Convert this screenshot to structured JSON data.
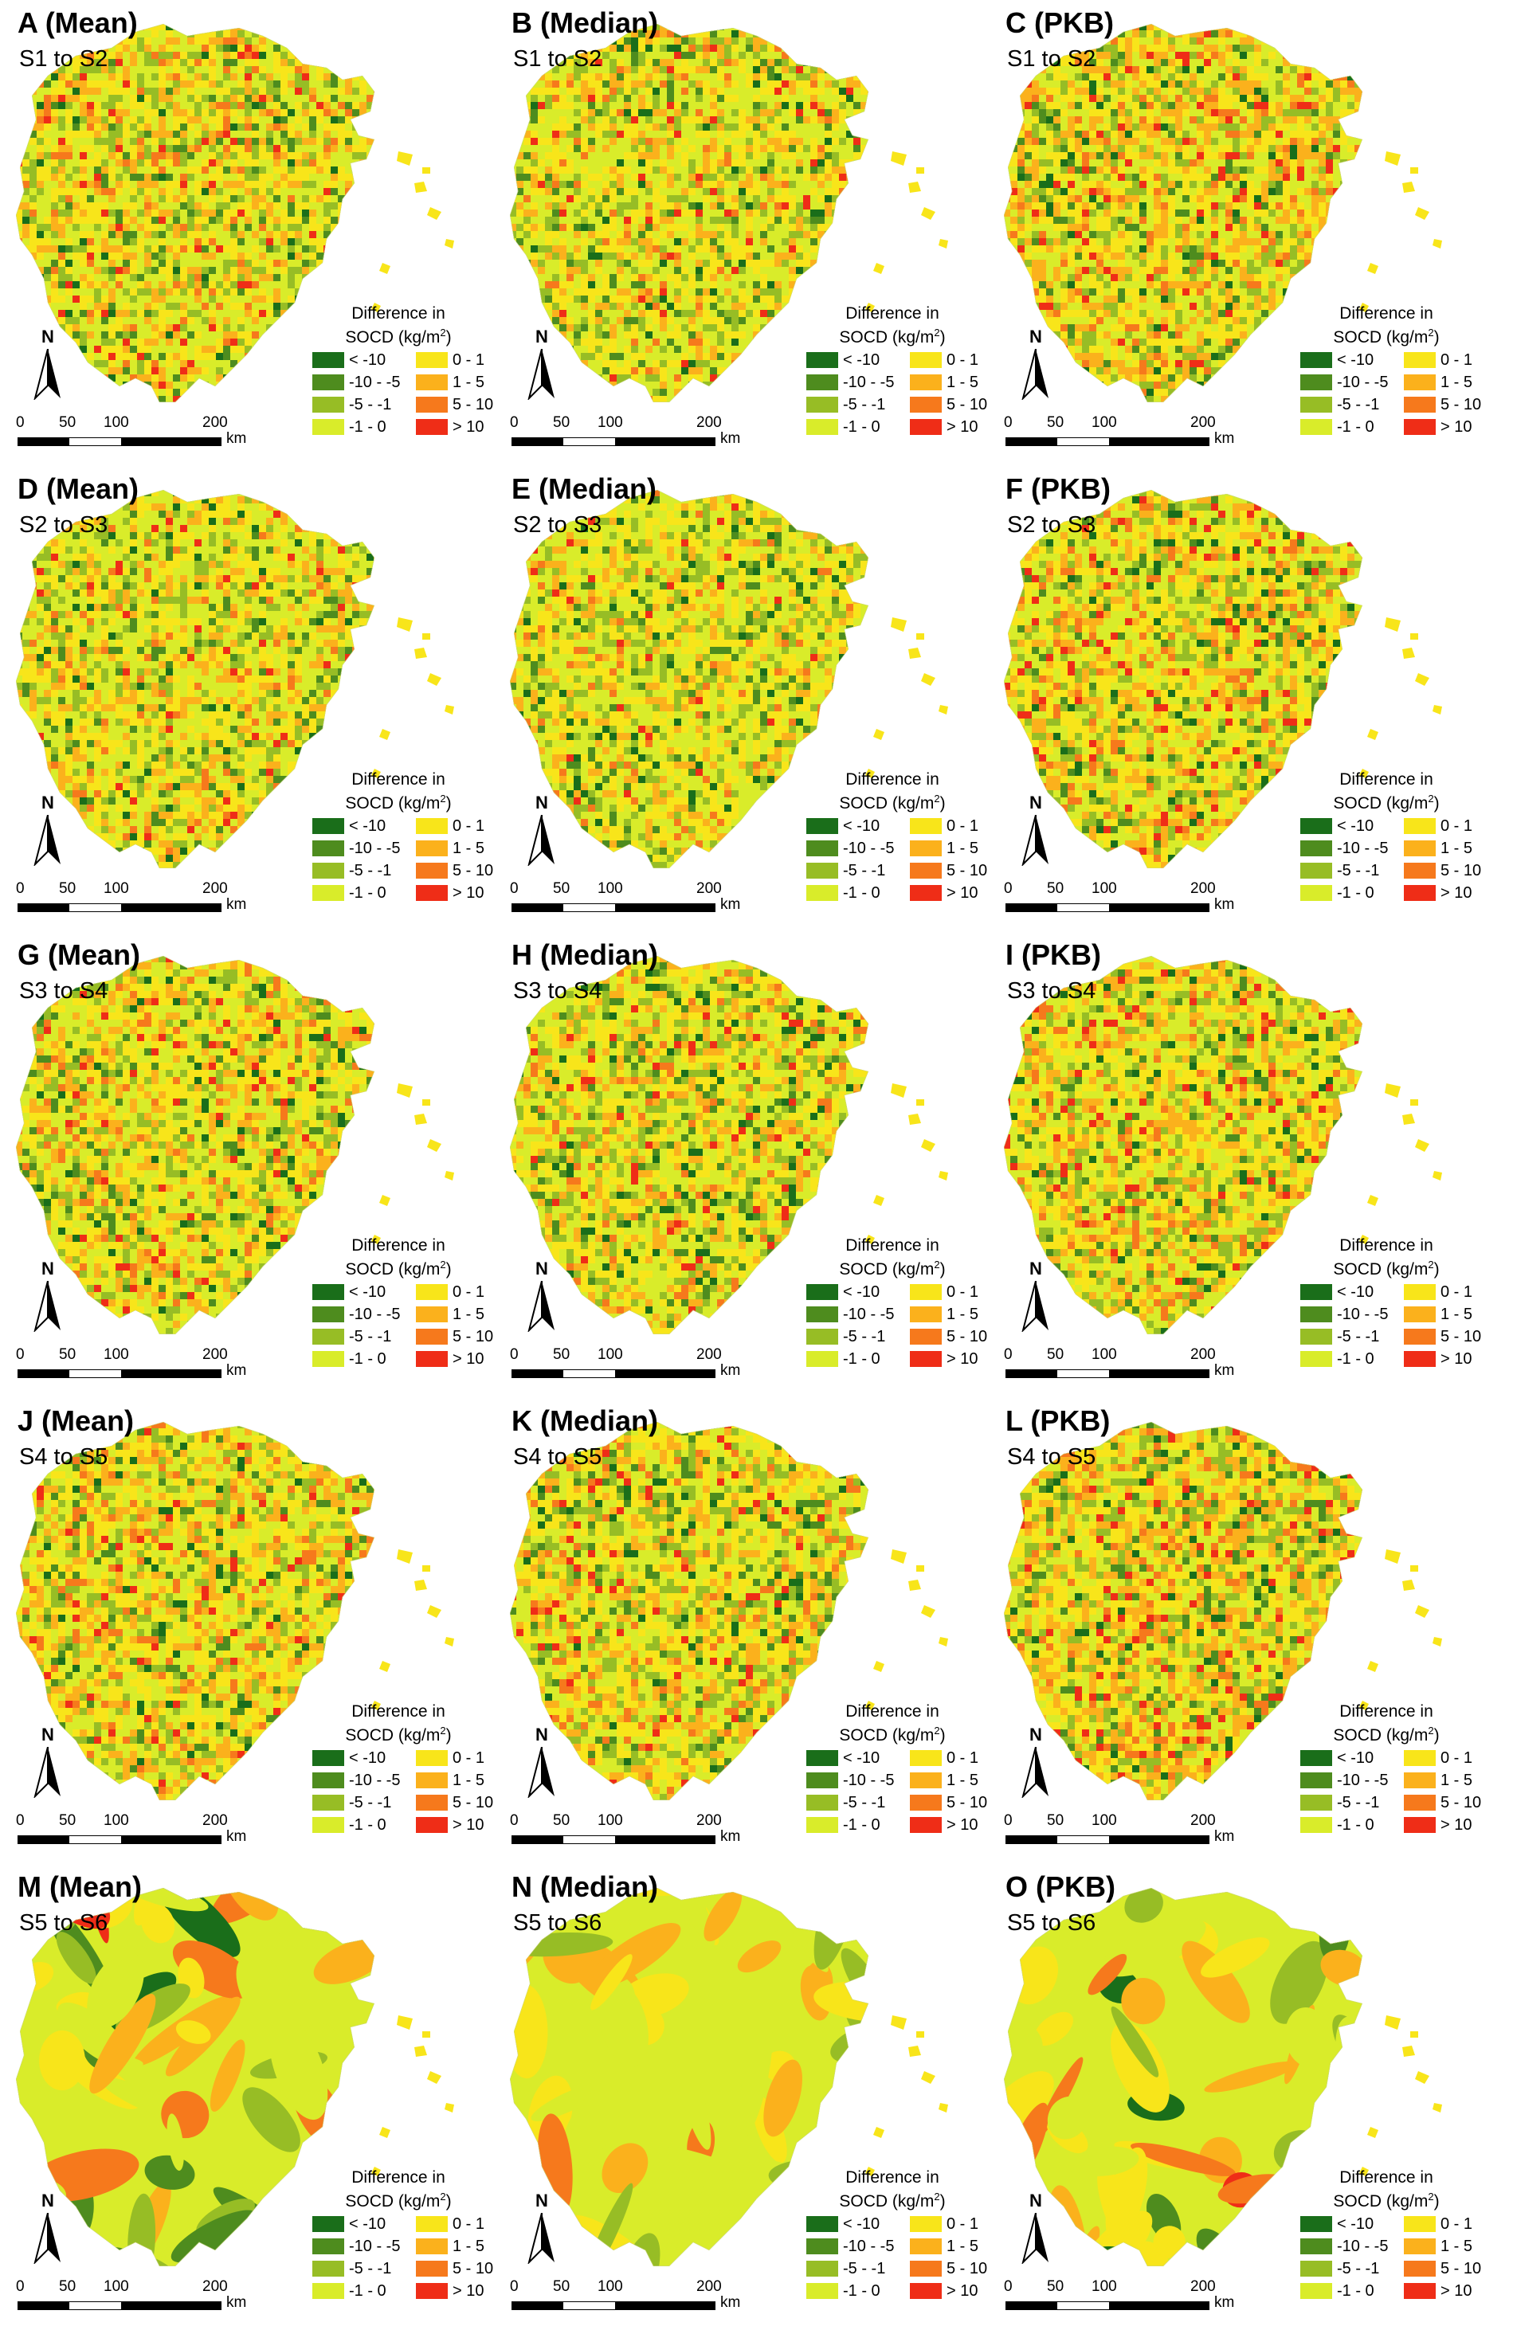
{
  "panels": [
    {
      "letter": "A",
      "method": "(Mean)",
      "transition": "S1 to S2",
      "smooth": false,
      "shift": 0.0
    },
    {
      "letter": "B",
      "method": "(Median)",
      "transition": "S1 to S2",
      "smooth": false,
      "shift": -0.05
    },
    {
      "letter": "C",
      "method": "(PKB)",
      "transition": "S1 to S2",
      "smooth": false,
      "shift": 0.1
    },
    {
      "letter": "D",
      "method": "(Mean)",
      "transition": "S2 to S3",
      "smooth": false,
      "shift": -0.05
    },
    {
      "letter": "E",
      "method": "(Median)",
      "transition": "S2 to S3",
      "smooth": false,
      "shift": -0.08
    },
    {
      "letter": "F",
      "method": "(PKB)",
      "transition": "S2 to S3",
      "smooth": false,
      "shift": 0.05
    },
    {
      "letter": "G",
      "method": "(Mean)",
      "transition": "S3 to S4",
      "smooth": false,
      "shift": 0.02
    },
    {
      "letter": "H",
      "method": "(Median)",
      "transition": "S3 to S4",
      "smooth": false,
      "shift": -0.02
    },
    {
      "letter": "I",
      "method": "(PKB)",
      "transition": "S3 to S4",
      "smooth": false,
      "shift": 0.03
    },
    {
      "letter": "J",
      "method": "(Mean)",
      "transition": "S4 to S5",
      "smooth": false,
      "shift": 0.08
    },
    {
      "letter": "K",
      "method": "(Median)",
      "transition": "S4 to S5",
      "smooth": false,
      "shift": 0.06
    },
    {
      "letter": "L",
      "method": "(PKB)",
      "transition": "S4 to S5",
      "smooth": false,
      "shift": 0.12
    },
    {
      "letter": "M",
      "method": "(Mean)",
      "transition": "S5 to S6",
      "smooth": true,
      "shift": 0.0
    },
    {
      "letter": "N",
      "method": "(Median)",
      "transition": "S5 to S6",
      "smooth": true,
      "shift": 0.02
    },
    {
      "letter": "O",
      "method": "(PKB)",
      "transition": "S5 to S6",
      "smooth": true,
      "shift": 0.08
    }
  ],
  "legend": {
    "title_line1": "Difference in",
    "title_line2_prefix": "SOCD (kg/m",
    "title_line2_sup": "2",
    "title_line2_suffix": ")",
    "classes": [
      {
        "label": "< -10",
        "color": "#1a6e1a"
      },
      {
        "label": "-10 - -5",
        "color": "#4e8c1e"
      },
      {
        "label": "-5 - -1",
        "color": "#97bd25"
      },
      {
        "label": "-1 - 0",
        "color": "#d9ec2a"
      },
      {
        "label": "0 - 1",
        "color": "#f8e51a"
      },
      {
        "label": "1 - 5",
        "color": "#fbb11c"
      },
      {
        "label": "5 - 10",
        "color": "#f6791c"
      },
      {
        "label": "> 10",
        "color": "#ef2d17"
      }
    ]
  },
  "north_arrow": {
    "letter": "N"
  },
  "scalebar": {
    "ticks": [
      "0",
      "50",
      "100",
      "200"
    ],
    "unit": "km"
  }
}
